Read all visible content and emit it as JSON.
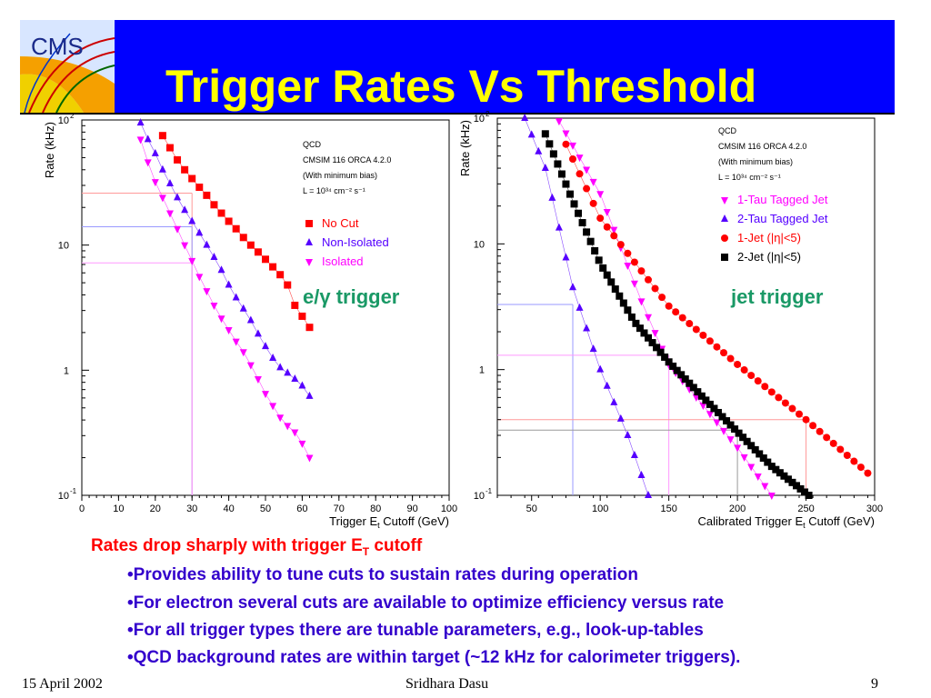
{
  "slide": {
    "title": "Trigger Rates Vs Threshold",
    "logo_text": "CMS",
    "footer_date": "15 April 2002",
    "footer_author": "Sridhara Dasu",
    "footer_page": "9",
    "summary_heading": "Rates drop sharply with trigger E",
    "summary_heading_sub": "T",
    "summary_heading_tail": " cutoff",
    "bullets": [
      "•Provides ability to tune cuts to sustain rates during operation",
      "•For electron several cuts are available to optimize efficiency versus rate",
      "•For all trigger types there are tunable parameters, e.g., look-up-tables",
      "•QCD background rates are within target (~12 kHz  for calorimeter triggers)."
    ],
    "colors": {
      "title_bg": "#0000ff",
      "title_text": "#ffff00",
      "heading": "#ff0000",
      "bullets": "#3300cc",
      "trigger_label": "#1a9966"
    }
  },
  "chart_data": [
    {
      "type": "scatter",
      "overlay_label": "e/γ trigger",
      "info_lines": [
        "QCD",
        "CMSIM 116 ORCA 4.2.0",
        "(With minimum bias)",
        "L = 10³⁴ cm⁻² s⁻¹"
      ],
      "xlabel": "Trigger E",
      "xlabel_sub": "t",
      "xlabel_tail": " Cutoff (GeV)",
      "ylabel": "Rate (kHz)",
      "xlim": [
        0,
        100
      ],
      "ylim": [
        0.1,
        100
      ],
      "yscale": "log",
      "xticks": [
        0,
        10,
        20,
        30,
        40,
        50,
        60,
        70,
        80,
        90,
        100
      ],
      "yticks": [
        {
          "v": 0.1,
          "t": "10"
        },
        {
          "v": 1,
          "t": "1"
        },
        {
          "v": 10,
          "t": "10"
        },
        {
          "v": 100,
          "t": "10"
        }
      ],
      "ytick_sup": {
        "0.1": "-1",
        "100": "2"
      },
      "legend_position": "right",
      "series": [
        {
          "name": "No Cut",
          "marker": "square",
          "color": "#ff0000",
          "x": [
            22,
            24,
            26,
            28,
            30,
            32,
            34,
            36,
            38,
            40,
            42,
            44,
            46,
            48,
            50,
            52,
            54,
            56,
            58,
            60,
            62
          ],
          "y": [
            75,
            60,
            48,
            40,
            34,
            29,
            25,
            21,
            18,
            15.5,
            13.5,
            11.5,
            10,
            8.8,
            7.7,
            6.7,
            5.8,
            4.8,
            3.3,
            2.7,
            2.2
          ]
        },
        {
          "name": "Non-Isolated",
          "marker": "triangle-up",
          "color": "#5500ff",
          "x": [
            16,
            18,
            20,
            22,
            24,
            26,
            28,
            30,
            32,
            34,
            36,
            38,
            40,
            42,
            44,
            46,
            48,
            50,
            52,
            54,
            56,
            58,
            60,
            62
          ],
          "y": [
            95,
            70,
            54,
            40,
            31,
            24,
            19,
            15.5,
            12.5,
            10,
            8,
            6.3,
            4.8,
            3.8,
            3.1,
            2.5,
            1.95,
            1.55,
            1.25,
            1.05,
            0.95,
            0.85,
            0.75,
            0.62
          ]
        },
        {
          "name": "Isolated",
          "marker": "triangle-down",
          "color": "#ff00ff",
          "x": [
            16,
            18,
            20,
            22,
            24,
            26,
            28,
            30,
            32,
            34,
            36,
            38,
            40,
            42,
            44,
            46,
            48,
            50,
            52,
            54,
            56,
            58,
            60,
            62
          ],
          "y": [
            70,
            46,
            32,
            24,
            18,
            13.5,
            10,
            7.5,
            5.6,
            4.3,
            3.3,
            2.6,
            2.1,
            1.7,
            1.4,
            1.1,
            0.85,
            0.65,
            0.52,
            0.42,
            0.36,
            0.32,
            0.26,
            0.2
          ]
        }
      ],
      "reference_lines": [
        {
          "y": 26,
          "x": 30,
          "color": "#ff9999"
        },
        {
          "y": 14,
          "x": 30,
          "color": "#9999ff"
        },
        {
          "y": 7.2,
          "x": 30,
          "color": "#ff99ff"
        }
      ]
    },
    {
      "type": "scatter",
      "overlay_label": "jet trigger",
      "info_lines": [
        "QCD",
        "CMSIM 116 ORCA 4.2.0",
        "(With minimum bias)",
        "L = 10³⁴ cm⁻² s⁻¹"
      ],
      "xlabel": "Calibrated Trigger E",
      "xlabel_sub": "t",
      "xlabel_tail": " Cutoff (GeV)",
      "ylabel": "Rate (kHz)",
      "xlim": [
        25,
        300
      ],
      "ylim": [
        0.1,
        100
      ],
      "yscale": "log",
      "xticks": [
        50,
        100,
        150,
        200,
        250,
        300
      ],
      "yticks": [
        {
          "v": 0.1,
          "t": "10"
        },
        {
          "v": 1,
          "t": "1"
        },
        {
          "v": 10,
          "t": "10"
        },
        {
          "v": 100,
          "t": "10"
        }
      ],
      "ytick_sup": {
        "0.1": "-1",
        "100": "2"
      },
      "legend_position": "right",
      "series": [
        {
          "name": "1-Tau Tagged Jet",
          "marker": "triangle-down",
          "color": "#ff00ff",
          "x_start": 70,
          "x_step": 5,
          "x_end": 225,
          "anchors": [
            [
              70,
              95
            ],
            [
              100,
              25
            ],
            [
              130,
              3.5
            ],
            [
              150,
              1.1
            ],
            [
              175,
              0.52
            ],
            [
              200,
              0.24
            ],
            [
              225,
              0.1
            ]
          ]
        },
        {
          "name": "2-Tau Tagged Jet",
          "marker": "triangle-up",
          "color": "#5500ff",
          "x_start": 45,
          "x_step": 5,
          "x_end": 135,
          "anchors": [
            [
              45,
              100
            ],
            [
              60,
              40
            ],
            [
              80,
              4.5
            ],
            [
              100,
              1
            ],
            [
              120,
              0.3
            ],
            [
              135,
              0.1
            ]
          ]
        },
        {
          "name": "1-Jet (|η|<5)",
          "marker": "circle",
          "color": "#ff0000",
          "x_start": 75,
          "x_step": 5,
          "x_end": 295,
          "anchors": [
            [
              75,
              62
            ],
            [
              100,
              16
            ],
            [
              150,
              3.2
            ],
            [
              200,
              1.1
            ],
            [
              250,
              0.4
            ],
            [
              295,
              0.15
            ]
          ]
        },
        {
          "name": "2-Jet (|η|<5)",
          "marker": "square",
          "color": "#000000",
          "x_start": 60,
          "x_step": 3,
          "x_end": 252,
          "anchors": [
            [
              60,
              75
            ],
            [
              80,
              22
            ],
            [
              100,
              7
            ],
            [
              125,
              2.4
            ],
            [
              150,
              1.15
            ],
            [
              175,
              0.6
            ],
            [
              200,
              0.32
            ],
            [
              225,
              0.17
            ],
            [
              252,
              0.1
            ]
          ]
        }
      ],
      "reference_lines": [
        {
          "y": 3.3,
          "x": 80,
          "color": "#9999ff"
        },
        {
          "y": 1.3,
          "x": 150,
          "color": "#ff99ff"
        },
        {
          "y": 0.4,
          "x": 250,
          "color": "#ff9999"
        },
        {
          "y": 0.33,
          "x": 200,
          "color": "#999999"
        }
      ]
    }
  ]
}
